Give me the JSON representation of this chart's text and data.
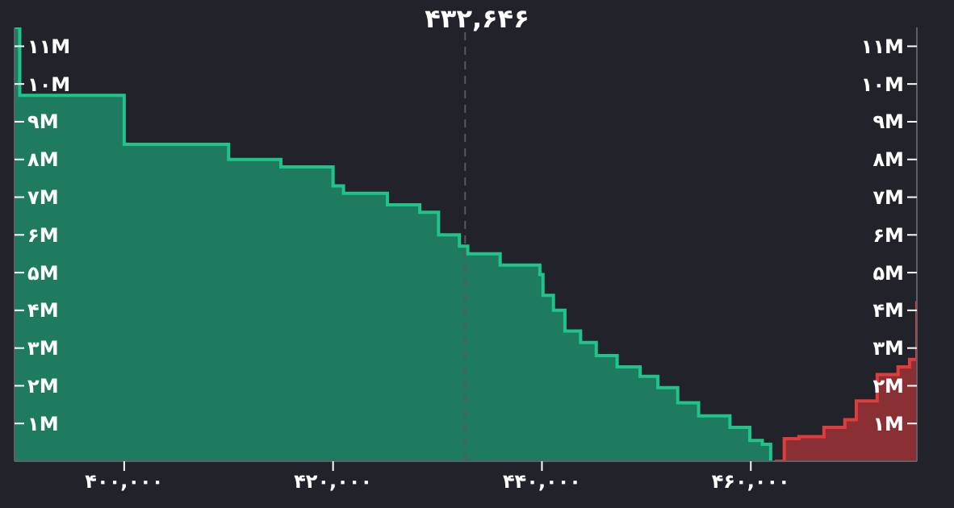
{
  "chart_data": {
    "type": "step",
    "title": "۴۳۲,۶۴۶",
    "series": [
      {
        "color": "#1ec48a",
        "x": [
          389500,
          390000,
          400000,
          410000,
          415000,
          420000,
          421000,
          425200,
          428300,
          430100,
          432100,
          432900,
          436000,
          439800,
          440100,
          441100,
          442200,
          443700,
          445200,
          447200,
          449400,
          451100,
          453000,
          455000,
          458000,
          459900,
          461100,
          461900
        ],
        "values": [
          11500000,
          9700000,
          8400000,
          8000000,
          7800000,
          7300000,
          7100000,
          6800000,
          6600000,
          6000000,
          5700000,
          5500000,
          5200000,
          4950000,
          4400000,
          4000000,
          3450000,
          3150000,
          2800000,
          2500000,
          2250000,
          1950000,
          1550000,
          1200000,
          900000,
          550000,
          450000,
          0
        ]
      },
      {
        "color": "#e03c3c",
        "x": [
          462300,
          463200,
          464600,
          467000,
          469000,
          470100,
          472100,
          474100,
          475200,
          475900
        ],
        "values": [
          0,
          600000,
          650000,
          900000,
          1100000,
          1600000,
          2300000,
          2500000,
          2700000,
          4250000
        ]
      }
    ],
    "xlim": [
      389500,
      475900
    ],
    "xticks": [
      {
        "value": 400000,
        "label": "۴۰۰,۰۰۰"
      },
      {
        "value": 420000,
        "label": "۴۲۰,۰۰۰"
      },
      {
        "value": 440000,
        "label": "۴۴۰,۰۰۰"
      },
      {
        "value": 460000,
        "label": "۴۶۰,۰۰۰"
      }
    ],
    "ylim": [
      0,
      11500000
    ],
    "yticks": [
      {
        "value": 1000000,
        "label": "۱M"
      },
      {
        "value": 2000000,
        "label": "۲M"
      },
      {
        "value": 3000000,
        "label": "۳M"
      },
      {
        "value": 4000000,
        "label": "۴M"
      },
      {
        "value": 5000000,
        "label": "۵M"
      },
      {
        "value": 6000000,
        "label": "۶M"
      },
      {
        "value": 7000000,
        "label": "۷M"
      },
      {
        "value": 8000000,
        "label": "۸M"
      },
      {
        "value": 9000000,
        "label": "۹M"
      },
      {
        "value": 10000000,
        "label": "۱۰M"
      },
      {
        "value": 11000000,
        "label": "۱۱M"
      }
    ],
    "y2lim": [
      0,
      11500000
    ],
    "y2ticks": [
      {
        "value": 1000000,
        "label": "۱M"
      },
      {
        "value": 2000000,
        "label": "۲M"
      },
      {
        "value": 3000000,
        "label": "۳M"
      },
      {
        "value": 4000000,
        "label": "۴M"
      },
      {
        "value": 5000000,
        "label": "۵M"
      },
      {
        "value": 6000000,
        "label": "۶M"
      },
      {
        "value": 7000000,
        "label": "۷M"
      },
      {
        "value": 8000000,
        "label": "۸M"
      },
      {
        "value": 9000000,
        "label": "۹M"
      },
      {
        "value": 10000000,
        "label": "۱۰M"
      },
      {
        "value": 11000000,
        "label": "۱۱M"
      }
    ],
    "ref_lines": [
      {
        "axis": "x",
        "value": 432646,
        "label": null,
        "color": "#555a60",
        "line_style": "dashed"
      }
    ],
    "grid": false,
    "legend": false
  }
}
